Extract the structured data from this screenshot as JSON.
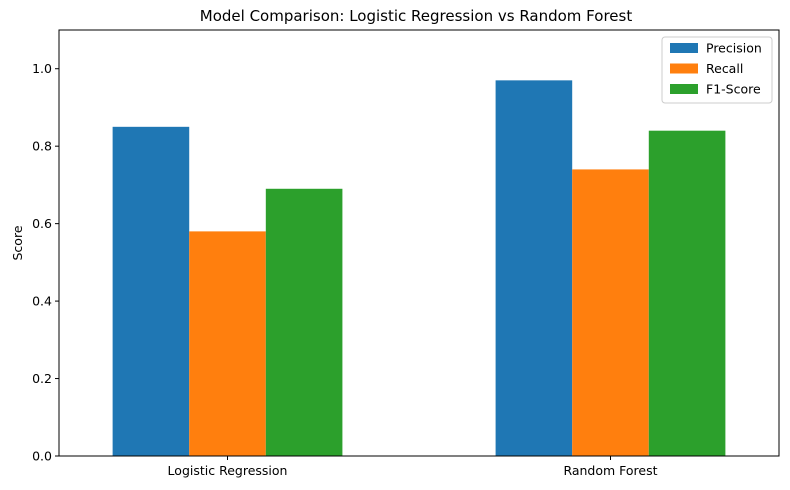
{
  "chart_data": {
    "type": "bar",
    "title": "Model Comparison: Logistic Regression vs Random Forest",
    "xlabel": "",
    "ylabel": "Score",
    "categories": [
      "Logistic Regression",
      "Random Forest"
    ],
    "series": [
      {
        "name": "Precision",
        "values": [
          0.85,
          0.97
        ],
        "color": "#1f77b4"
      },
      {
        "name": "Recall",
        "values": [
          0.58,
          0.74
        ],
        "color": "#ff7f0e"
      },
      {
        "name": "F1-Score",
        "values": [
          0.69,
          0.84
        ],
        "color": "#2ca02c"
      }
    ],
    "ylim": [
      0,
      1.1
    ],
    "yticks": [
      "0.0",
      "0.2",
      "0.4",
      "0.6",
      "0.8",
      "1.0"
    ],
    "grid": false,
    "legend_position": "top-right"
  }
}
